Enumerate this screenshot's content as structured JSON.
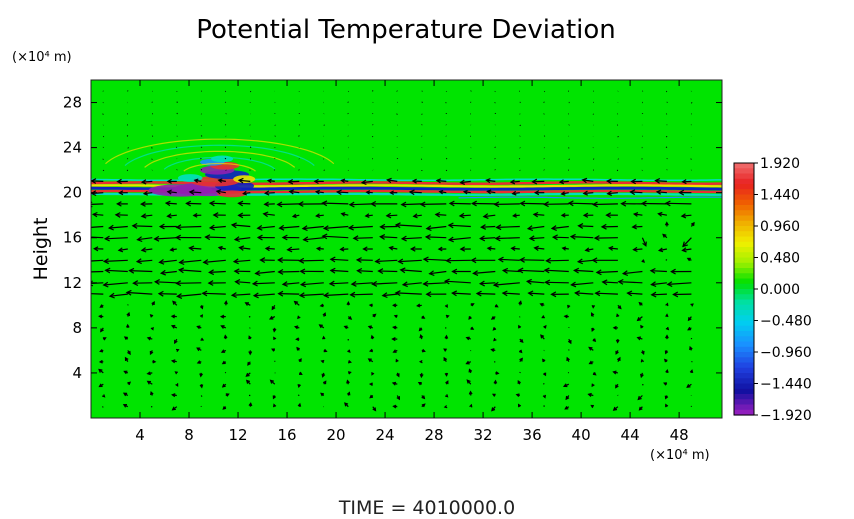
{
  "chart_data": {
    "type": "heatmap",
    "title": "Potential Temperature Deviation",
    "ylabel": "Height",
    "x_unit_label": "(×10⁴ m)",
    "y_unit_label": "(×10⁴ m)",
    "xlim": [
      0,
      51.5
    ],
    "ylim": [
      0,
      30
    ],
    "x_ticks": [
      4,
      8,
      12,
      16,
      20,
      24,
      28,
      32,
      36,
      40,
      44,
      48
    ],
    "y_ticks": [
      4,
      8,
      12,
      16,
      20,
      24,
      28
    ],
    "colorbar": {
      "ticks": [
        1.92,
        1.44,
        0.96,
        0.48,
        0.0,
        -0.48,
        -0.96,
        -1.44,
        -1.92
      ],
      "tick_labels": [
        "1.920",
        "1.440",
        "0.960",
        "0.480",
        "0.000",
        "−0.480",
        "−0.960",
        "−1.440",
        "−1.920"
      ],
      "range": [
        -1.92,
        1.92
      ],
      "colors": [
        "#f07070",
        "#e83030",
        "#f08c00",
        "#f0e000",
        "#00e000",
        "#00e0c0",
        "#1a90ff",
        "#1020c0",
        "#9020b0"
      ]
    },
    "background_color": "#00e400",
    "features": [
      {
        "name": "thermal-band",
        "y_center": 20.3,
        "x_range": [
          0,
          51.5
        ]
      },
      {
        "name": "perturbation-cluster",
        "x_center": 10.5,
        "y_center": 21.5
      }
    ],
    "vector_field": {
      "description": "wind vectors",
      "strong_levels": [
        19,
        17,
        16,
        13.5,
        12.5,
        11
      ]
    },
    "footer": "TIME  =  4010000.0"
  }
}
